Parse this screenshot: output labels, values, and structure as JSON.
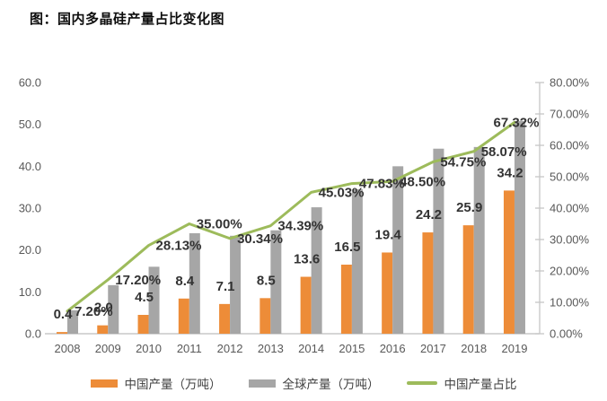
{
  "title": "图：国内多晶硅产量占比变化图",
  "chart_data": {
    "type": "combo-bar-line",
    "title": "图：国内多晶硅产量占比变化图",
    "categories": [
      "2008",
      "2009",
      "2010",
      "2011",
      "2012",
      "2013",
      "2014",
      "2015",
      "2016",
      "2017",
      "2018",
      "2019"
    ],
    "series": [
      {
        "name": "中国产量（万吨）",
        "type": "bar",
        "axis": "left",
        "color": "#ED8C38",
        "values": [
          0.4,
          2.0,
          4.5,
          8.4,
          7.1,
          8.5,
          13.6,
          16.5,
          19.4,
          24.2,
          25.9,
          34.2
        ],
        "labels": [
          "0.4",
          "2.0",
          "4.5",
          "8.4",
          "7.1",
          "8.5",
          "13.6",
          "16.5",
          "19.4",
          "24.2",
          "25.9",
          "34.2"
        ]
      },
      {
        "name": "全球产量（万吨）",
        "type": "bar",
        "axis": "left",
        "color": "#A6A6A6",
        "values": [
          5.6,
          11.6,
          16.0,
          24.0,
          23.4,
          24.7,
          30.2,
          34.5,
          40.0,
          44.2,
          44.6,
          50.8
        ],
        "labels": [],
        "values_estimated_from_axis": true
      },
      {
        "name": "中国产量占比",
        "type": "line",
        "axis": "right",
        "color": "#9DBB5B",
        "values": [
          7.2,
          17.2,
          28.13,
          35.0,
          30.34,
          34.39,
          45.03,
          47.83,
          48.5,
          54.75,
          58.07,
          67.32
        ],
        "labels": [
          "7.20%",
          "17.20%",
          "28.13%",
          "35.00%",
          "30.34%",
          "34.39%",
          "45.03%",
          "47.83%",
          "48.50%",
          "54.75%",
          "58.07%",
          "67.32%"
        ]
      }
    ],
    "axes": {
      "left": {
        "min": 0,
        "max": 60,
        "step": 10,
        "tick_labels": [
          "0.0",
          "10.0",
          "20.0",
          "30.0",
          "40.0",
          "50.0",
          "60.0"
        ]
      },
      "right": {
        "min": 0,
        "max": 80,
        "step": 10,
        "tick_labels": [
          "0.00%",
          "10.00%",
          "20.00%",
          "30.00%",
          "40.00%",
          "50.00%",
          "60.00%",
          "70.00%",
          "80.00%"
        ]
      }
    },
    "grid": false,
    "legend_position": "bottom"
  }
}
